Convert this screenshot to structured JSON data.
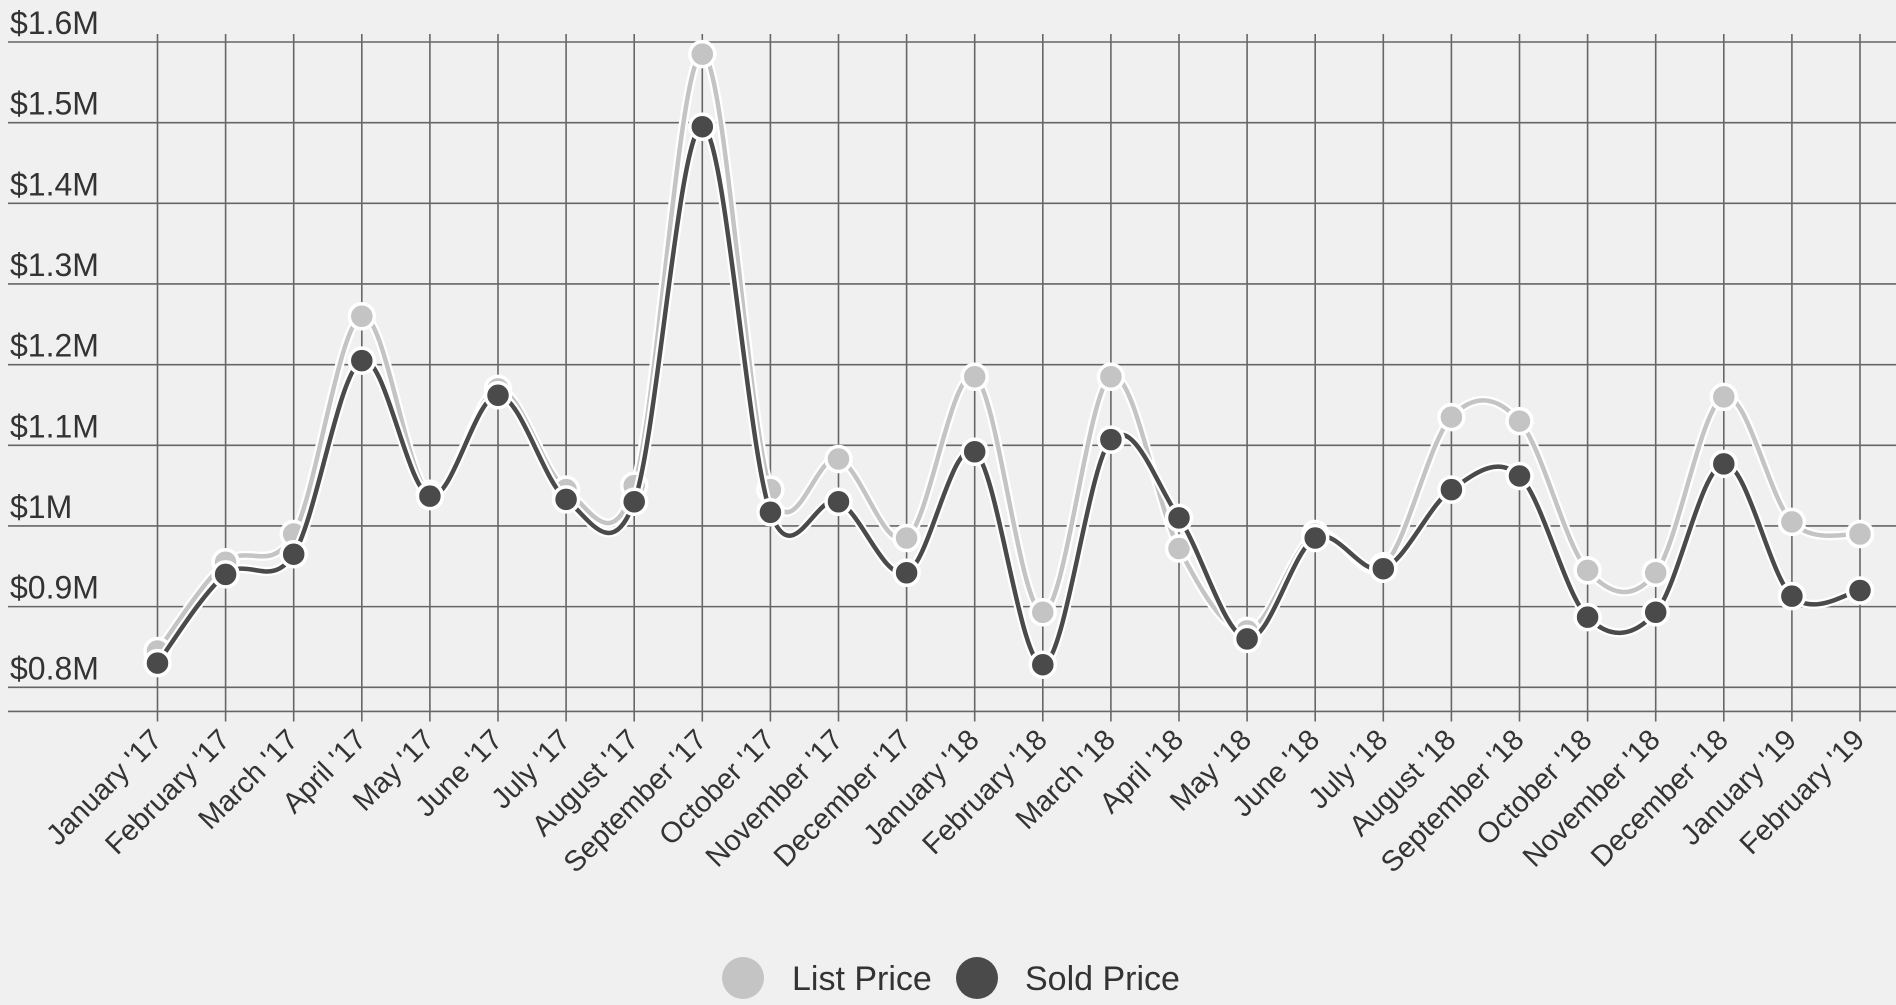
{
  "chart_data": {
    "type": "line",
    "title": "",
    "xlabel": "",
    "ylabel": "",
    "categories": [
      "January '17",
      "February '17",
      "March '17",
      "April '17",
      "May '17",
      "June '17",
      "July '17",
      "August '17",
      "September '17",
      "October '17",
      "November '17",
      "December '17",
      "January '18",
      "February '18",
      "March '18",
      "April '18",
      "May '18",
      "June '18",
      "July '18",
      "August '18",
      "September '18",
      "October '18",
      "November '18",
      "December '18",
      "January '19",
      "February '19"
    ],
    "ylim": [
      0.77,
      1.6
    ],
    "y_ticks": [
      0.8,
      0.9,
      1.0,
      1.1,
      1.2,
      1.3,
      1.4,
      1.5,
      1.6
    ],
    "y_tick_labels": [
      "$0.8M",
      "$0.9M",
      "$1M",
      "$1.1M",
      "$1.2M",
      "$1.3M",
      "$1.4M",
      "$1.5M",
      "$1.6M"
    ],
    "grid": true,
    "legend_position": "bottom-center",
    "series": [
      {
        "name": "List Price",
        "color": "#c4c4c4",
        "values": [
          0.845,
          0.955,
          0.99,
          1.26,
          1.04,
          1.17,
          1.045,
          1.05,
          1.585,
          1.045,
          1.083,
          0.985,
          1.185,
          0.893,
          1.185,
          0.972,
          0.87,
          0.99,
          0.95,
          1.135,
          1.13,
          0.945,
          0.942,
          1.16,
          1.005,
          0.99
        ]
      },
      {
        "name": "Sold Price",
        "color": "#4a4a4a",
        "values": [
          0.83,
          0.94,
          0.965,
          1.205,
          1.037,
          1.162,
          1.033,
          1.03,
          1.495,
          1.017,
          1.03,
          0.942,
          1.092,
          0.828,
          1.107,
          1.01,
          0.86,
          0.985,
          0.947,
          1.045,
          1.062,
          0.887,
          0.893,
          1.077,
          0.913,
          0.92
        ]
      }
    ]
  }
}
